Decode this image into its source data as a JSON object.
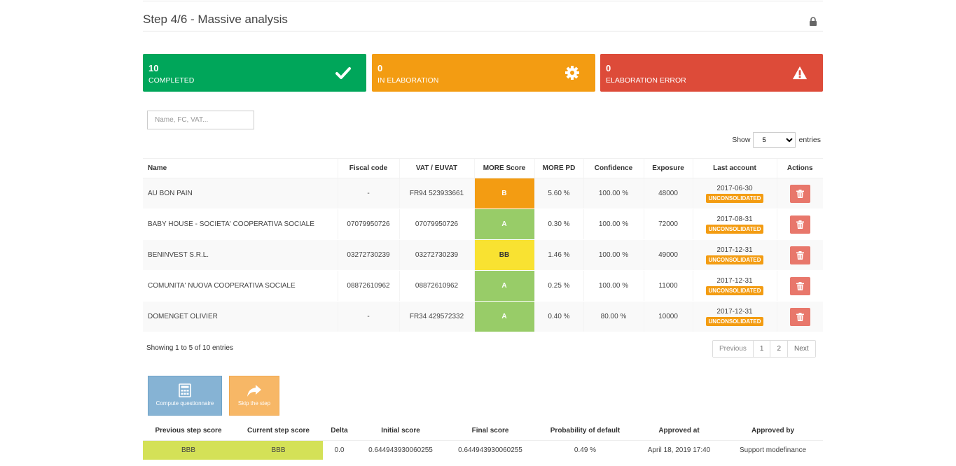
{
  "header": {
    "title": "Step 4/6 - Massive analysis",
    "lock_icon": "lock-icon"
  },
  "stats": [
    {
      "num": "10",
      "label": "COMPLETED",
      "color": "#00a65a",
      "icon": "check-icon"
    },
    {
      "num": "0",
      "label": "IN ELABORATION",
      "color": "#f39c12",
      "icon": "gear-icon"
    },
    {
      "num": "0",
      "label": "ELABORATION ERROR",
      "color": "#dd4b39",
      "icon": "warning-icon"
    }
  ],
  "search": {
    "placeholder": "Name, FC, VAT..."
  },
  "length": {
    "show": "Show",
    "value": "5",
    "entries": "entries"
  },
  "table": {
    "headers": [
      "Name",
      "Fiscal code",
      "VAT / EUVAT",
      "MORE Score",
      "MORE PD",
      "Confidence",
      "Exposure",
      "Last account",
      "Actions"
    ],
    "rows": [
      {
        "name": "AU BON PAIN",
        "fiscal": "-",
        "vat": "FR94 523933661",
        "score": "B",
        "score_color": "#f39c12",
        "pd": "5.60 %",
        "confidence": "100.00 %",
        "exposure": "48000",
        "date": "2017-06-30",
        "badge": "UNCONSOLIDATED"
      },
      {
        "name": "BABY HOUSE - SOCIETA' COOPERATIVA SOCIALE",
        "fiscal": "07079950726",
        "vat": "07079950726",
        "score": "A",
        "score_color": "#98cc68",
        "pd": "0.30 %",
        "confidence": "100.00 %",
        "exposure": "72000",
        "date": "2017-08-31",
        "badge": "UNCONSOLIDATED"
      },
      {
        "name": "BENINVEST S.R.L.",
        "fiscal": "03272730239",
        "vat": "03272730239",
        "score": "BB",
        "score_color": "#f9e231",
        "pd": "1.46 %",
        "confidence": "100.00 %",
        "exposure": "49000",
        "date": "2017-12-31",
        "badge": "UNCONSOLIDATED"
      },
      {
        "name": "COMUNITA' NUOVA COOPERATIVA SOCIALE",
        "fiscal": "08872610962",
        "vat": "08872610962",
        "score": "A",
        "score_color": "#98cc68",
        "pd": "0.25 %",
        "confidence": "100.00 %",
        "exposure": "11000",
        "date": "2017-12-31",
        "badge": "UNCONSOLIDATED"
      },
      {
        "name": "DOMENGET OLIVIER",
        "fiscal": "-",
        "vat": "FR34 429572332",
        "score": "A",
        "score_color": "#98cc68",
        "pd": "0.40 %",
        "confidence": "80.00 %",
        "exposure": "10000",
        "date": "2017-12-31",
        "badge": "UNCONSOLIDATED"
      }
    ]
  },
  "info": "Showing 1 to 5 of 10 entries",
  "pager": {
    "prev": "Previous",
    "p1": "1",
    "p2": "2",
    "next": "Next"
  },
  "buttons": {
    "compute": "Compute questionnaire",
    "skip": "Skip the step"
  },
  "scores": {
    "headers": [
      "Previous step score",
      "Current step score",
      "Delta",
      "Initial score",
      "Final score",
      "Probability of default",
      "Approved at",
      "Approved by"
    ],
    "values": [
      "BBB",
      "BBB",
      "0.0",
      "0.644943930060255",
      "0.644943930060255",
      "0.49 %",
      "April 18, 2019 17:40",
      "Support modefinance"
    ]
  }
}
